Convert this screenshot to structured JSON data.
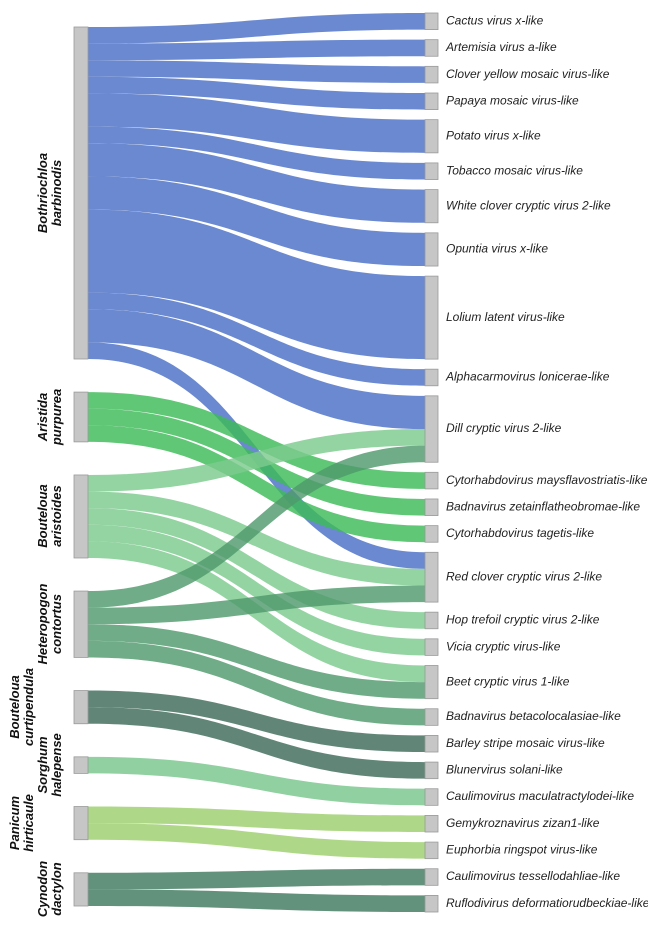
{
  "chart_data": {
    "type": "sankey",
    "sources": [
      {
        "name": "Bothriochloa barbinodis",
        "color": "#4a6fc6"
      },
      {
        "name": "Aristida purpurea",
        "color": "#3dbb58"
      },
      {
        "name": "Bouteloua aristoides",
        "color": "#7ccb8e"
      },
      {
        "name": "Heteropogon contortus",
        "color": "#4f9a6c"
      },
      {
        "name": "Bouteloua curtipendula",
        "color": "#3e6b5a"
      },
      {
        "name": "Sorghum halepense",
        "color": "#78c68c"
      },
      {
        "name": "Panicum hirticaule",
        "color": "#9ccf6c"
      },
      {
        "name": "Cynodon dactylon",
        "color": "#3f7a5e"
      }
    ],
    "targets": [
      "Cactus virus x-like",
      "Artemisia virus a-like",
      "Clover yellow mosaic virus-like",
      "Papaya mosaic virus-like",
      "Potato virus x-like",
      "Tobacco mosaic virus-like",
      "White clover cryptic virus 2-like",
      "Opuntia virus x-like",
      "Lolium latent virus-like",
      "Alphacarmovirus lonicerae-like",
      "Dill cryptic virus 2-like",
      "Cytorhabdovirus maysflavostriatis-like",
      "Badnavirus zetainflatheobromae-like",
      "Cytorhabdovirus tagetis-like",
      "Red clover cryptic virus 2-like",
      "Hop trefoil cryptic virus 2-like",
      "Vicia cryptic virus-like",
      "Beet cryptic virus 1-like",
      "Badnavirus betacolocalasiae-like",
      "Barley stripe mosaic virus-like",
      "Blunervirus solani-like",
      "Caulimovirus maculatractylodei-like",
      "Gemykroznavirus zizan1-like",
      "Euphorbia ringspot virus-like",
      "Caulimovirus tessellodahliae-like",
      "Ruflodivirus deformatiorudbeckiae-like"
    ],
    "links": [
      {
        "source": "Bothriochloa barbinodis",
        "target": "Cactus virus x-like",
        "value": 1
      },
      {
        "source": "Bothriochloa barbinodis",
        "target": "Artemisia virus a-like",
        "value": 1
      },
      {
        "source": "Bothriochloa barbinodis",
        "target": "Clover yellow mosaic virus-like",
        "value": 1
      },
      {
        "source": "Bothriochloa barbinodis",
        "target": "Papaya mosaic virus-like",
        "value": 1
      },
      {
        "source": "Bothriochloa barbinodis",
        "target": "Potato virus x-like",
        "value": 2
      },
      {
        "source": "Bothriochloa barbinodis",
        "target": "Tobacco mosaic virus-like",
        "value": 1
      },
      {
        "source": "Bothriochloa barbinodis",
        "target": "White clover cryptic virus 2-like",
        "value": 2
      },
      {
        "source": "Bothriochloa barbinodis",
        "target": "Opuntia virus x-like",
        "value": 2
      },
      {
        "source": "Bothriochloa barbinodis",
        "target": "Lolium latent virus-like",
        "value": 5
      },
      {
        "source": "Bothriochloa barbinodis",
        "target": "Alphacarmovirus lonicerae-like",
        "value": 1
      },
      {
        "source": "Bothriochloa barbinodis",
        "target": "Dill cryptic virus 2-like",
        "value": 2
      },
      {
        "source": "Bothriochloa barbinodis",
        "target": "Red clover cryptic virus 2-like",
        "value": 1
      },
      {
        "source": "Aristida purpurea",
        "target": "Cytorhabdovirus maysflavostriatis-like",
        "value": 1
      },
      {
        "source": "Aristida purpurea",
        "target": "Badnavirus zetainflatheobromae-like",
        "value": 1
      },
      {
        "source": "Aristida purpurea",
        "target": "Cytorhabdovirus tagetis-like",
        "value": 1
      },
      {
        "source": "Bouteloua aristoides",
        "target": "Dill cryptic virus 2-like",
        "value": 1
      },
      {
        "source": "Bouteloua aristoides",
        "target": "Red clover cryptic virus 2-like",
        "value": 1
      },
      {
        "source": "Bouteloua aristoides",
        "target": "Hop trefoil cryptic virus 2-like",
        "value": 1
      },
      {
        "source": "Bouteloua aristoides",
        "target": "Vicia cryptic virus-like",
        "value": 1
      },
      {
        "source": "Bouteloua aristoides",
        "target": "Beet cryptic virus 1-like",
        "value": 1
      },
      {
        "source": "Heteropogon contortus",
        "target": "Dill cryptic virus 2-like",
        "value": 1
      },
      {
        "source": "Heteropogon contortus",
        "target": "Red clover cryptic virus 2-like",
        "value": 1
      },
      {
        "source": "Heteropogon contortus",
        "target": "Beet cryptic virus 1-like",
        "value": 1
      },
      {
        "source": "Heteropogon contortus",
        "target": "Badnavirus betacolocalasiae-like",
        "value": 1
      },
      {
        "source": "Bouteloua curtipendula",
        "target": "Barley stripe mosaic virus-like",
        "value": 1
      },
      {
        "source": "Bouteloua curtipendula",
        "target": "Blunervirus solani-like",
        "value": 1
      },
      {
        "source": "Sorghum halepense",
        "target": "Caulimovirus maculatractylodei-like",
        "value": 1
      },
      {
        "source": "Panicum hirticaule",
        "target": "Gemykroznavirus zizan1-like",
        "value": 1
      },
      {
        "source": "Panicum hirticaule",
        "target": "Euphorbia ringspot virus-like",
        "value": 1
      },
      {
        "source": "Cynodon dactylon",
        "target": "Caulimovirus tessellodahliae-like",
        "value": 1
      },
      {
        "source": "Cynodon dactylon",
        "target": "Ruflodivirus deformatiorudbeckiae-like",
        "value": 1
      }
    ]
  }
}
